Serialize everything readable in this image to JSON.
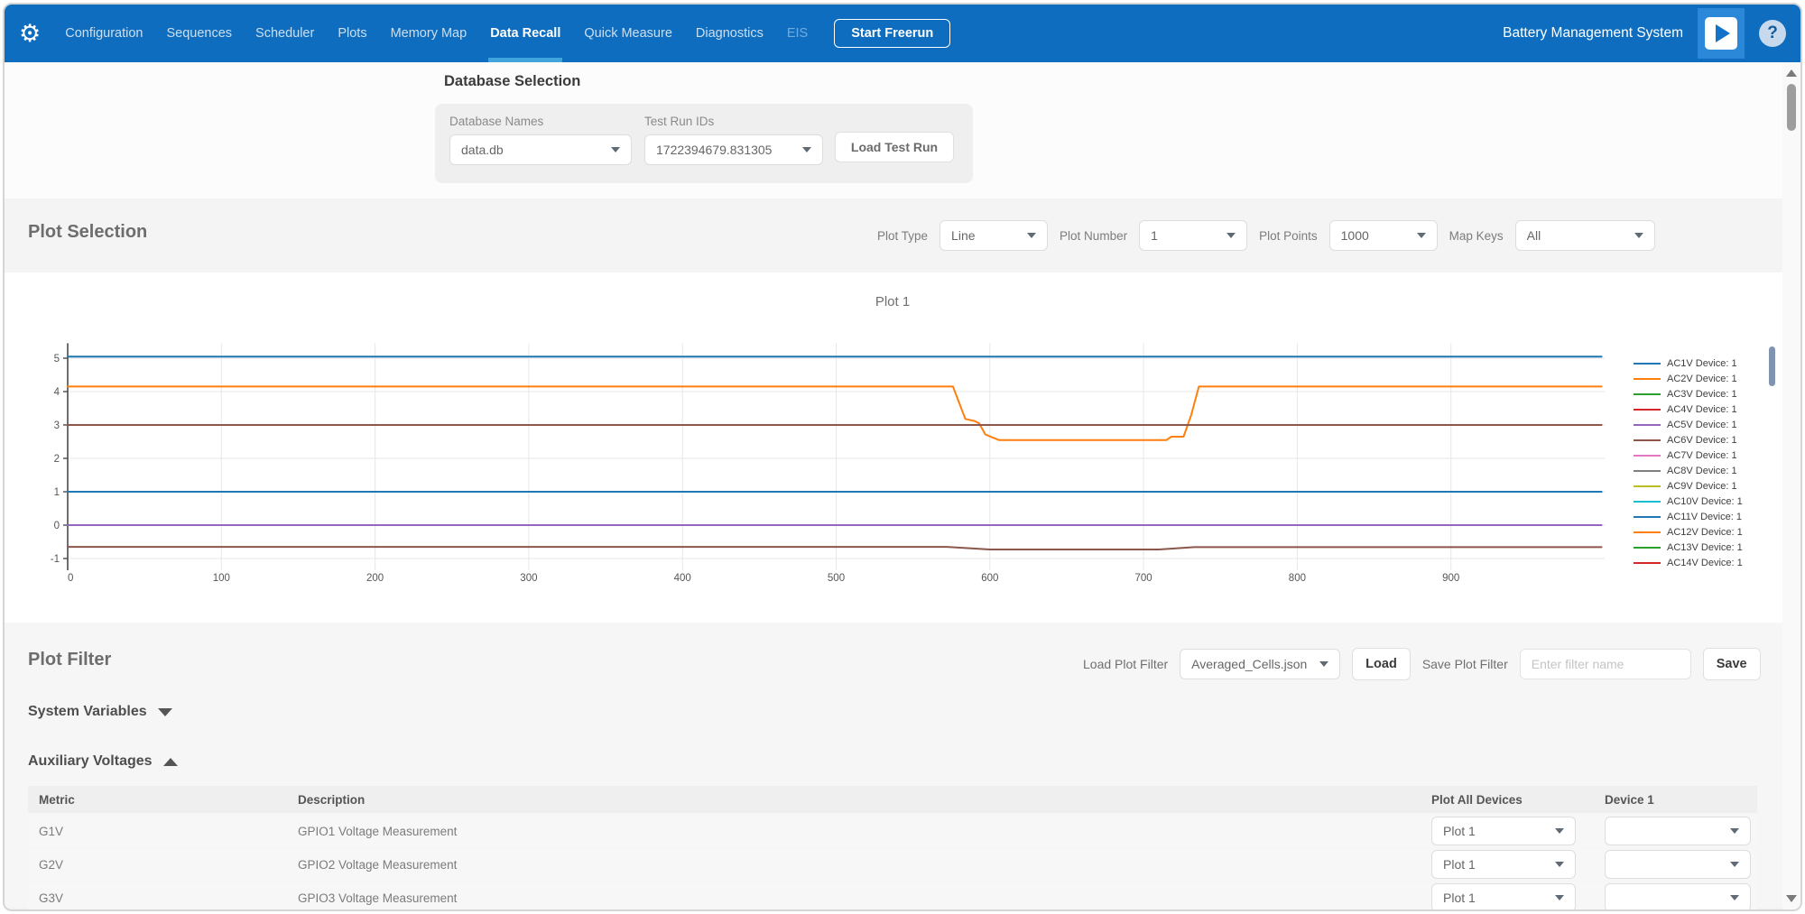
{
  "navbar": {
    "items": [
      {
        "label": "Configuration",
        "state": "normal"
      },
      {
        "label": "Sequences",
        "state": "normal"
      },
      {
        "label": "Scheduler",
        "state": "normal"
      },
      {
        "label": "Plots",
        "state": "normal"
      },
      {
        "label": "Memory Map",
        "state": "normal"
      },
      {
        "label": "Data Recall",
        "state": "active"
      },
      {
        "label": "Quick Measure",
        "state": "normal"
      },
      {
        "label": "Diagnostics",
        "state": "normal"
      },
      {
        "label": "EIS",
        "state": "disabled"
      }
    ],
    "start_freerun_label": "Start Freerun",
    "app_title": "Battery Management System",
    "colors": {
      "bar": "#0e6dbe",
      "active_underline": "#42a4dc",
      "play_bg": "#2b88d8"
    }
  },
  "database_selection": {
    "heading": "Database Selection",
    "database_names_label": "Database Names",
    "database_names_value": "data.db",
    "test_run_ids_label": "Test Run IDs",
    "test_run_ids_value": "1722394679.831305",
    "load_button_label": "Load Test Run"
  },
  "plot_selection": {
    "heading": "Plot Selection",
    "controls": [
      {
        "label": "Plot Type",
        "value": "Line"
      },
      {
        "label": "Plot Number",
        "value": "1"
      },
      {
        "label": "Plot Points",
        "value": "1000"
      },
      {
        "label": "Map Keys",
        "value": "All"
      }
    ]
  },
  "chart_data": {
    "type": "line",
    "title": "Plot 1",
    "xlabel": "",
    "ylabel": "",
    "xlim": [
      0,
      1000
    ],
    "ylim": [
      -1.35,
      5.45
    ],
    "x_ticks": [
      0,
      100,
      200,
      300,
      400,
      500,
      600,
      700,
      800,
      900
    ],
    "y_ticks": [
      -1,
      0,
      1,
      2,
      3,
      4,
      5
    ],
    "grid": true,
    "legend_position": "right",
    "legend": [
      {
        "label": "AC1V Device: 1",
        "color": "#1f77b4"
      },
      {
        "label": "AC2V Device: 1",
        "color": "#ff7f0e"
      },
      {
        "label": "AC3V Device: 1",
        "color": "#2ca02c"
      },
      {
        "label": "AC4V Device: 1",
        "color": "#d62728"
      },
      {
        "label": "AC5V Device: 1",
        "color": "#9467bd"
      },
      {
        "label": "AC6V Device: 1",
        "color": "#8c564b"
      },
      {
        "label": "AC7V Device: 1",
        "color": "#e377c2"
      },
      {
        "label": "AC8V Device: 1",
        "color": "#7f7f7f"
      },
      {
        "label": "AC9V Device: 1",
        "color": "#bcbd22"
      },
      {
        "label": "AC10V Device: 1",
        "color": "#17becf"
      },
      {
        "label": "AC11V Device: 1",
        "color": "#1f77b4"
      },
      {
        "label": "AC12V Device: 1",
        "color": "#ff7f0e"
      },
      {
        "label": "AC13V Device: 1",
        "color": "#2ca02c"
      },
      {
        "label": "AC14V Device: 1",
        "color": "#d62728"
      }
    ],
    "visible_lines": [
      {
        "name": "blue-flat-5",
        "color": "#1f77b4",
        "points": [
          [
            0,
            5.05
          ],
          [
            998,
            5.05
          ]
        ]
      },
      {
        "name": "orange-dip",
        "color": "#ff7f0e",
        "points": [
          [
            0,
            4.15
          ],
          [
            576,
            4.15
          ],
          [
            584,
            3.18
          ],
          [
            590,
            3.12
          ],
          [
            593,
            3.05
          ],
          [
            597,
            2.72
          ],
          [
            602,
            2.62
          ],
          [
            606,
            2.55
          ],
          [
            715,
            2.55
          ],
          [
            718,
            2.65
          ],
          [
            726,
            2.65
          ],
          [
            731,
            3.3
          ],
          [
            736,
            4.15
          ],
          [
            998,
            4.15
          ]
        ]
      },
      {
        "name": "brown-flat-3",
        "color": "#8c564b",
        "points": [
          [
            0,
            3.0
          ],
          [
            998,
            3.0
          ]
        ]
      },
      {
        "name": "blue-flat-1",
        "color": "#1f77b4",
        "points": [
          [
            0,
            1.0
          ],
          [
            998,
            1.0
          ]
        ]
      },
      {
        "name": "purple-flat-0",
        "color": "#9467bd",
        "points": [
          [
            0,
            0.0
          ],
          [
            998,
            0.0
          ]
        ]
      },
      {
        "name": "brown-dip",
        "color": "#8c564b",
        "points": [
          [
            0,
            -0.65
          ],
          [
            572,
            -0.65
          ],
          [
            600,
            -0.73
          ],
          [
            710,
            -0.73
          ],
          [
            733,
            -0.66
          ],
          [
            998,
            -0.66
          ]
        ]
      }
    ]
  },
  "plot_filter": {
    "heading": "Plot Filter",
    "load_label": "Load Plot Filter",
    "load_value": "Averaged_Cells.json",
    "load_button": "Load",
    "save_label": "Save Plot Filter",
    "save_placeholder": "Enter filter name",
    "save_button": "Save",
    "system_variables": {
      "heading": "System Variables",
      "collapsed": true
    },
    "auxiliary_voltages": {
      "heading": "Auxiliary Voltages",
      "collapsed": false,
      "columns": [
        "Metric",
        "Description",
        "Plot All Devices",
        "Device 1"
      ],
      "rows": [
        {
          "metric": "G1V",
          "description": "GPIO1 Voltage Measurement",
          "plot_all": "Plot 1",
          "device1": ""
        },
        {
          "metric": "G2V",
          "description": "GPIO2 Voltage Measurement",
          "plot_all": "Plot 1",
          "device1": ""
        },
        {
          "metric": "G3V",
          "description": "GPIO3 Voltage Measurement",
          "plot_all": "Plot 1",
          "device1": ""
        }
      ]
    }
  }
}
